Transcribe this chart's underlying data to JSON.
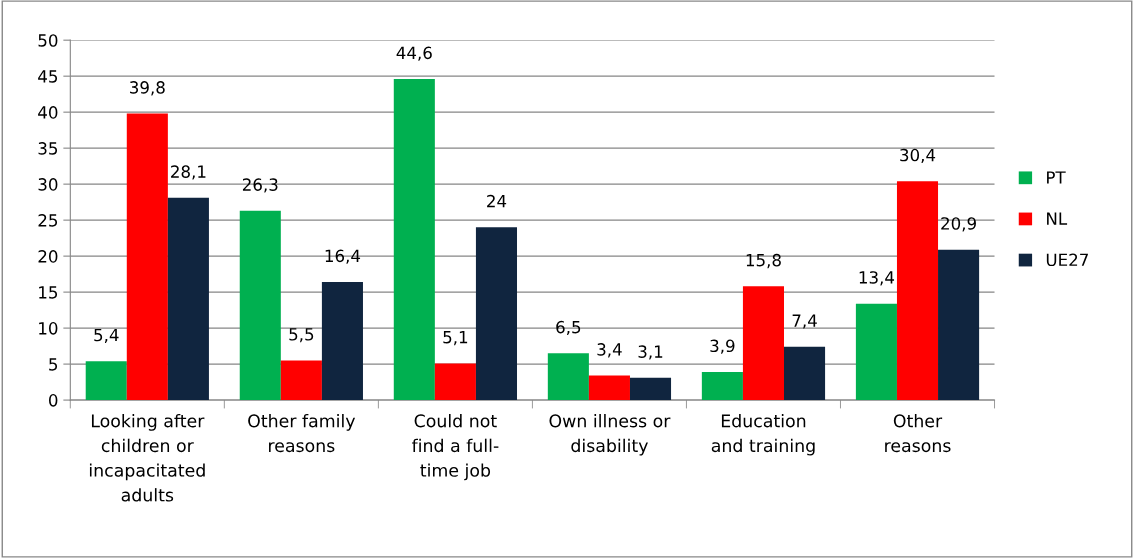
{
  "chart_data": {
    "type": "bar",
    "categories": [
      "Looking after\nchildren or\nincapacitated\nadults",
      "Other family\nreasons",
      "Could not\nfind a full-\ntime job",
      "Own illness or\ndisability",
      "Education\nand training",
      "Other\nreasons"
    ],
    "series": [
      {
        "name": "PT",
        "color": "#00b050",
        "values": [
          5.4,
          26.3,
          44.6,
          6.5,
          3.9,
          13.4
        ],
        "value_labels": [
          "5,4",
          "26,3",
          "44,6",
          "6,5",
          "3,9",
          "13,4"
        ]
      },
      {
        "name": "NL",
        "color": "#ff0000",
        "values": [
          39.8,
          5.5,
          5.1,
          3.4,
          15.8,
          30.4
        ],
        "value_labels": [
          "39,8",
          "5,5",
          "5,1",
          "3,4",
          "15,8",
          "30,4"
        ]
      },
      {
        "name": "UE27",
        "color": "#10253f",
        "values": [
          28.1,
          16.4,
          24,
          3.1,
          7.4,
          20.9
        ],
        "value_labels": [
          "28,1",
          "16,4",
          "24",
          "3,1",
          "7,4",
          "20,9"
        ]
      }
    ],
    "ylim": [
      0,
      50
    ],
    "yticks": [
      0,
      5,
      10,
      15,
      20,
      25,
      30,
      35,
      40,
      45,
      50
    ],
    "grid": "y",
    "legend": "right"
  }
}
